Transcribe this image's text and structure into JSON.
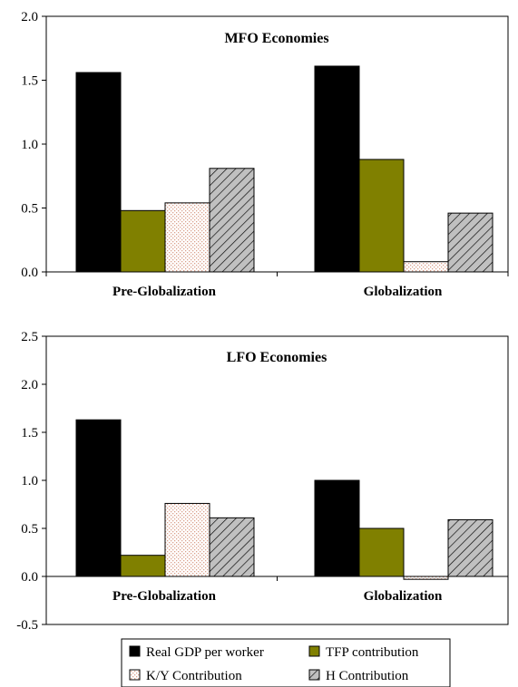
{
  "chart_data": [
    {
      "type": "bar",
      "title": "MFO Economies",
      "categories": [
        "Pre-Globalization",
        "Globalization"
      ],
      "ylim": [
        0,
        2.0
      ],
      "yticks": [
        "0.0",
        "0.5",
        "1.0",
        "1.5",
        "2.0"
      ],
      "grid": false,
      "series": [
        {
          "name": "Real GDP per worker",
          "values": [
            1.56,
            1.61
          ]
        },
        {
          "name": "TFP contribution",
          "values": [
            0.48,
            0.88
          ]
        },
        {
          "name": "K/Y Contribution",
          "values": [
            0.54,
            0.08
          ]
        },
        {
          "name": "H Contribution",
          "values": [
            0.81,
            0.46
          ]
        }
      ]
    },
    {
      "type": "bar",
      "title": "LFO Economies",
      "categories": [
        "Pre-Globalization",
        "Globalization"
      ],
      "ylim": [
        -0.5,
        2.5
      ],
      "yticks": [
        "-0.5",
        "0.0",
        "0.5",
        "1.0",
        "1.5",
        "2.0",
        "2.5"
      ],
      "grid": false,
      "series": [
        {
          "name": "Real GDP per worker",
          "values": [
            1.63,
            1.0
          ]
        },
        {
          "name": "TFP contribution",
          "values": [
            0.22,
            0.5
          ]
        },
        {
          "name": "K/Y Contribution",
          "values": [
            0.76,
            -0.03
          ]
        },
        {
          "name": "H Contribution",
          "values": [
            0.61,
            0.59
          ]
        }
      ]
    }
  ],
  "legend": {
    "placement": "bottom-center",
    "items": [
      {
        "label": "Real GDP per worker",
        "pattern": "solid-black"
      },
      {
        "label": "TFP contribution",
        "pattern": "solid-olive"
      },
      {
        "label": "K/Y Contribution",
        "pattern": "dotted-pink"
      },
      {
        "label": "H Contribution",
        "pattern": "diagonal-hatch-gray"
      }
    ]
  },
  "colors": {
    "gdp": "#000000",
    "tfp": "#808000",
    "ky_base": "#ffffff",
    "ky_dots": "#d9a08c",
    "h_base": "#c0c0c0",
    "h_lines": "#000000"
  }
}
